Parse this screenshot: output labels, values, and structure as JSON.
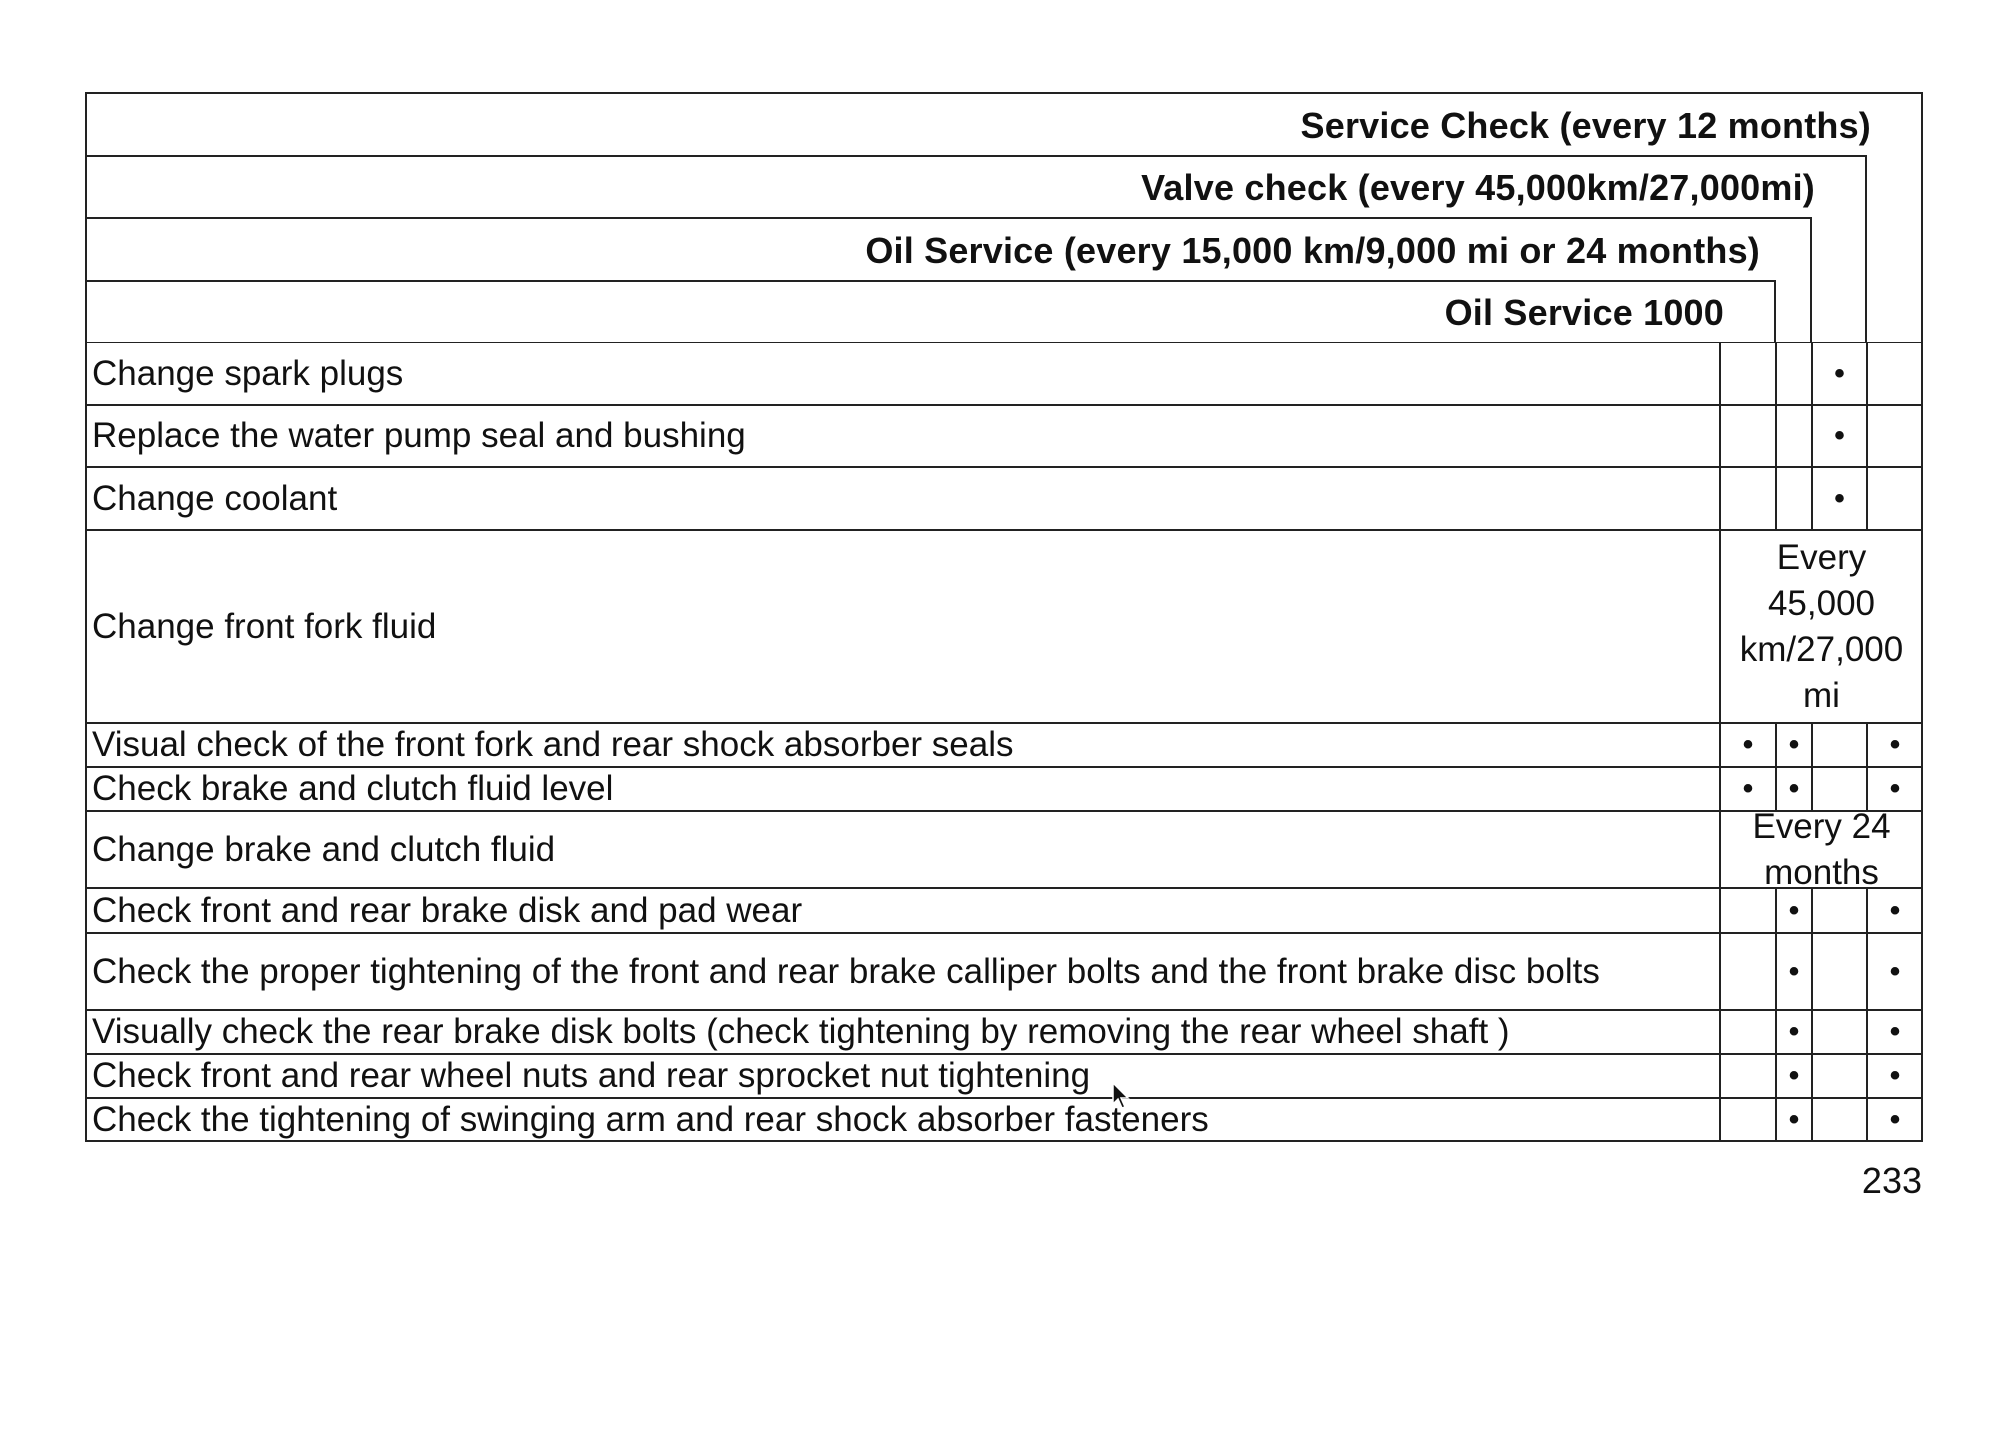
{
  "headers": [
    "Service Check (every 12 months)",
    "Valve check (every 45,000km/27,000mi)",
    "Oil Service (every 15,000 km/9,000 mi or 24 months)",
    "Oil Service 1000"
  ],
  "columns": [
    "Oil Service 1000",
    "Oil Service",
    "Valve check",
    "Service Check"
  ],
  "mark_symbol": "•",
  "rows": [
    {
      "label": "Change spark plugs",
      "marks": [
        false,
        false,
        true,
        false
      ]
    },
    {
      "label": "Replace the water pump seal and bushing",
      "marks": [
        false,
        false,
        true,
        false
      ]
    },
    {
      "label": "Change coolant",
      "marks": [
        false,
        false,
        true,
        false
      ]
    },
    {
      "label": "Change front fork fluid",
      "span": "Every 45,000 km/27,000 mi"
    },
    {
      "label": "Visual check of the front fork and rear shock absorber seals",
      "marks": [
        true,
        true,
        false,
        true
      ]
    },
    {
      "label": "Check brake and clutch fluid level",
      "marks": [
        true,
        true,
        false,
        true
      ]
    },
    {
      "label": "Change brake and clutch fluid",
      "span": "Every 24 months"
    },
    {
      "label": "Check front and rear brake disk and pad wear",
      "marks": [
        false,
        true,
        false,
        true
      ]
    },
    {
      "label": "Check the proper tightening of the front and rear brake calliper bolts and the front brake disc bolts",
      "marks": [
        false,
        true,
        false,
        true
      ]
    },
    {
      "label": "Visually check the rear brake disk bolts (check tightening by removing the rear wheel shaft )",
      "marks": [
        false,
        true,
        false,
        true
      ]
    },
    {
      "label": "Check front and rear wheel nuts and rear sprocket nut tightening",
      "marks": [
        false,
        true,
        false,
        true
      ]
    },
    {
      "label": "Check the tightening of swinging arm and rear shock absorber fasteners",
      "marks": [
        false,
        true,
        false,
        true
      ]
    }
  ],
  "page_number": "233"
}
